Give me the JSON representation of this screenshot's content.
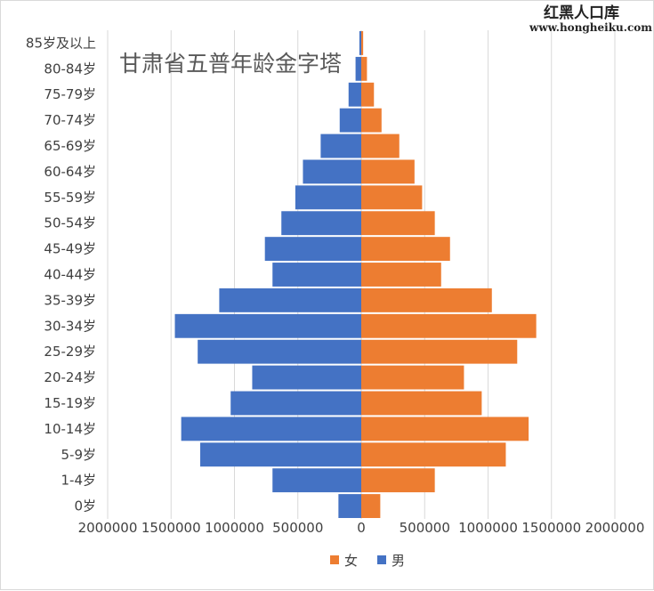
{
  "watermark": {
    "site_name": "红黑人口库",
    "url": "www.hongheiku.com"
  },
  "chart_data": {
    "type": "bar",
    "orientation": "horizontal",
    "title": "甘肃省五普年龄金字塔",
    "categories": [
      "0岁",
      "1-4岁",
      "5-9岁",
      "10-14岁",
      "15-19岁",
      "20-24岁",
      "25-29岁",
      "30-34岁",
      "35-39岁",
      "40-44岁",
      "45-49岁",
      "50-54岁",
      "55-59岁",
      "60-64岁",
      "65-69岁",
      "70-74岁",
      "75-79岁",
      "80-84岁",
      "85岁及以上"
    ],
    "series": [
      {
        "name": "女",
        "color": "#ed7d31",
        "values": [
          150000,
          580000,
          1140000,
          1320000,
          950000,
          810000,
          1230000,
          1380000,
          1030000,
          630000,
          700000,
          580000,
          480000,
          420000,
          300000,
          160000,
          100000,
          45000,
          15000
        ]
      },
      {
        "name": "男",
        "color": "#4472c4",
        "values": [
          -180000,
          -700000,
          -1270000,
          -1420000,
          -1030000,
          -860000,
          -1290000,
          -1470000,
          -1120000,
          -700000,
          -760000,
          -630000,
          -520000,
          -460000,
          -320000,
          -170000,
          -100000,
          -45000,
          -15000
        ]
      }
    ],
    "xlim": [
      -2000000,
      2000000
    ],
    "xticks": [
      -2000000,
      -1500000,
      -1000000,
      -500000,
      0,
      500000,
      1000000,
      1500000,
      2000000
    ],
    "xtick_labels": [
      "2000000",
      "1500000",
      "1000000",
      "500000",
      "0",
      "500000",
      "1000000",
      "1500000",
      "2000000"
    ],
    "grid": "vertical",
    "legend": "bottom"
  }
}
